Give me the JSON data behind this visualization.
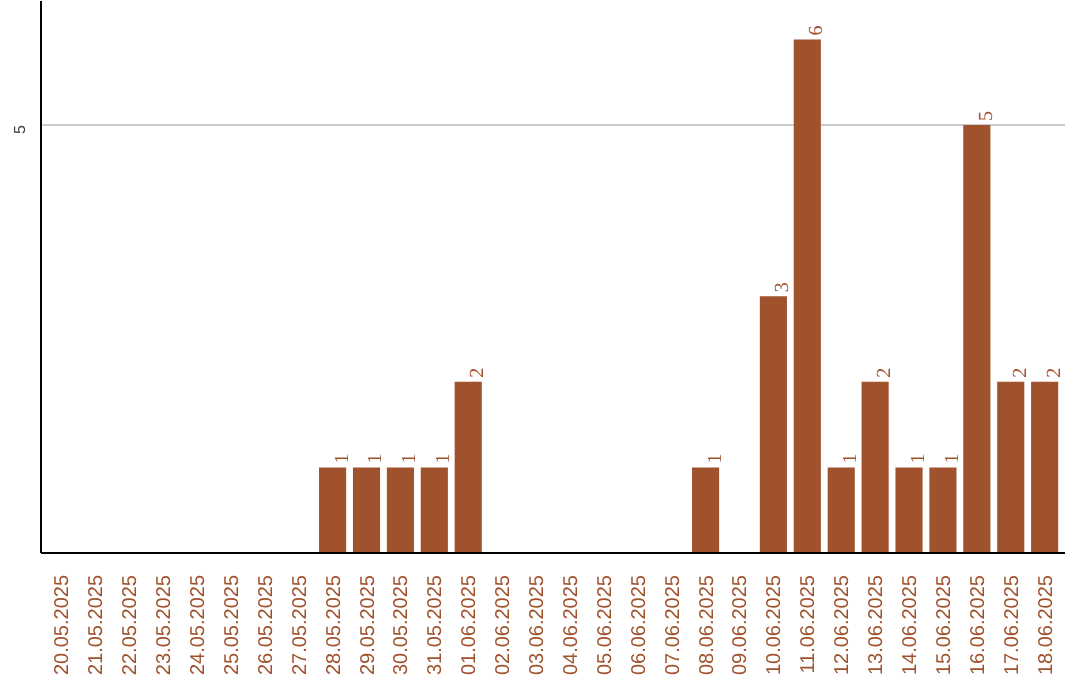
{
  "chart_data": {
    "type": "bar",
    "categories": [
      "20.05.2025",
      "21.05.2025",
      "22.05.2025",
      "23.05.2025",
      "24.05.2025",
      "25.05.2025",
      "26.05.2025",
      "27.05.2025",
      "28.05.2025",
      "29.05.2025",
      "30.05.2025",
      "31.05.2025",
      "01.06.2025",
      "02.06.2025",
      "03.06.2025",
      "04.06.2025",
      "05.06.2025",
      "06.06.2025",
      "07.06.2025",
      "08.06.2025",
      "09.06.2025",
      "10.06.2025",
      "11.06.2025",
      "12.06.2025",
      "13.06.2025",
      "14.06.2025",
      "15.06.2025",
      "16.06.2025",
      "17.06.2025",
      "18.06.2025"
    ],
    "values": [
      0,
      0,
      0,
      0,
      0,
      0,
      0,
      0,
      1,
      1,
      1,
      1,
      2,
      0,
      0,
      0,
      0,
      0,
      0,
      1,
      0,
      3,
      6,
      1,
      2,
      1,
      1,
      5,
      2,
      2
    ],
    "value_labels": [
      null,
      null,
      null,
      null,
      null,
      null,
      null,
      null,
      "1",
      "1",
      "1",
      "1",
      "2",
      null,
      null,
      null,
      null,
      null,
      null,
      "1",
      null,
      "3",
      "6",
      "1",
      "2",
      "1",
      "1",
      "5",
      "2",
      "2"
    ],
    "color": "#a0522d",
    "ylim": [
      0,
      6.45
    ],
    "yticks": [
      5
    ],
    "grid": "y"
  }
}
